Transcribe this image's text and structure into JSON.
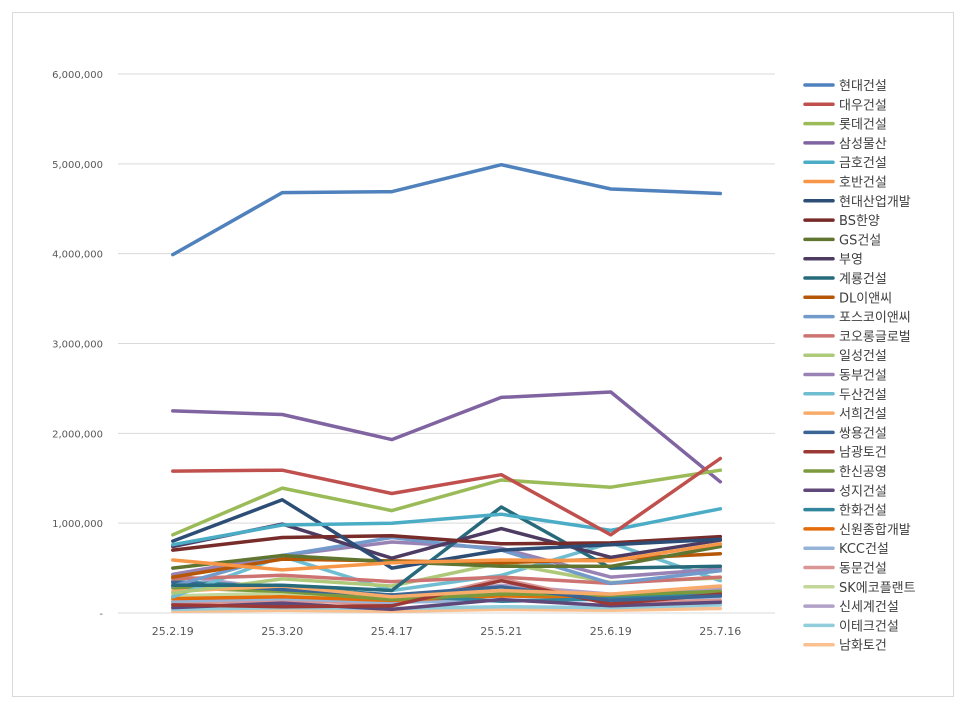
{
  "chart_data": {
    "type": "line",
    "title": "",
    "xlabel": "",
    "ylabel": "",
    "categories": [
      "25.2.19",
      "25.3.20",
      "25.4.17",
      "25.5.21",
      "25.6.19",
      "25.7.16"
    ],
    "ylim": [
      0,
      6000000
    ],
    "yticks": [
      0,
      1000000,
      2000000,
      3000000,
      4000000,
      5000000,
      6000000
    ],
    "ytick_labels": [
      "-",
      "1,000,000",
      "2,000,000",
      "3,000,000",
      "4,000,000",
      "5,000,000",
      "6,000,000"
    ],
    "grid": "horizontal",
    "legend_position": "right",
    "series": [
      {
        "name": "현대건설",
        "color": "#4f81bd",
        "values": [
          3990000,
          4680000,
          4690000,
          4990000,
          4720000,
          4670000
        ]
      },
      {
        "name": "대우건설",
        "color": "#c0504d",
        "values": [
          1580000,
          1590000,
          1330000,
          1540000,
          870000,
          1720000
        ]
      },
      {
        "name": "롯데건설",
        "color": "#9bbb59",
        "values": [
          870000,
          1390000,
          1140000,
          1480000,
          1400000,
          1590000
        ]
      },
      {
        "name": "삼성물산",
        "color": "#8064a2",
        "values": [
          2250000,
          2210000,
          1930000,
          2400000,
          2460000,
          1460000
        ]
      },
      {
        "name": "금호건설",
        "color": "#4bacc6",
        "values": [
          760000,
          980000,
          1000000,
          1100000,
          920000,
          1160000
        ]
      },
      {
        "name": "호반건설",
        "color": "#f79646",
        "values": [
          590000,
          480000,
          560000,
          590000,
          580000,
          770000
        ]
      },
      {
        "name": "현대산업개발",
        "color": "#2c4d75",
        "values": [
          800000,
          1260000,
          500000,
          700000,
          760000,
          820000
        ]
      },
      {
        "name": "BS한양",
        "color": "#772c2a",
        "values": [
          700000,
          840000,
          860000,
          770000,
          780000,
          850000
        ]
      },
      {
        "name": "GS건설",
        "color": "#5f7530",
        "values": [
          500000,
          640000,
          570000,
          520000,
          520000,
          740000
        ]
      },
      {
        "name": "부영",
        "color": "#4d3b62",
        "values": [
          740000,
          990000,
          610000,
          940000,
          620000,
          810000
        ]
      },
      {
        "name": "계룡건설",
        "color": "#276a7c",
        "values": [
          310000,
          310000,
          250000,
          1180000,
          500000,
          520000
        ]
      },
      {
        "name": "DL이앤씨",
        "color": "#b65708",
        "values": [
          400000,
          600000,
          580000,
          560000,
          600000,
          660000
        ]
      },
      {
        "name": "포스코이앤씨",
        "color": "#729aca",
        "values": [
          300000,
          640000,
          840000,
          700000,
          330000,
          470000
        ]
      },
      {
        "name": "코오롱글로벌",
        "color": "#cd7371",
        "values": [
          380000,
          420000,
          350000,
          400000,
          330000,
          400000
        ]
      },
      {
        "name": "일성건설",
        "color": "#afc97a",
        "values": [
          220000,
          380000,
          300000,
          560000,
          340000,
          390000
        ]
      },
      {
        "name": "동부건설",
        "color": "#9983b5",
        "values": [
          430000,
          640000,
          790000,
          720000,
          400000,
          490000
        ]
      },
      {
        "name": "두산건설",
        "color": "#6fbdd1",
        "values": [
          180000,
          630000,
          250000,
          420000,
          780000,
          360000
        ]
      },
      {
        "name": "서희건설",
        "color": "#f9ab6b",
        "values": [
          240000,
          300000,
          180000,
          250000,
          210000,
          300000
        ]
      },
      {
        "name": "쌍용건설",
        "color": "#3a6595",
        "values": [
          340000,
          260000,
          200000,
          290000,
          140000,
          190000
        ]
      },
      {
        "name": "남광토건",
        "color": "#9a3936",
        "values": [
          90000,
          70000,
          80000,
          360000,
          100000,
          210000
        ]
      },
      {
        "name": "한신공영",
        "color": "#7a9a3d",
        "values": [
          280000,
          240000,
          150000,
          210000,
          200000,
          240000
        ]
      },
      {
        "name": "성지건설",
        "color": "#5f497a",
        "values": [
          60000,
          110000,
          40000,
          150000,
          80000,
          120000
        ]
      },
      {
        "name": "한화건설",
        "color": "#31859c",
        "values": [
          350000,
          290000,
          200000,
          130000,
          160000,
          210000
        ]
      },
      {
        "name": "신원종합개발",
        "color": "#e46c0a",
        "values": [
          160000,
          180000,
          140000,
          190000,
          170000,
          220000
        ]
      },
      {
        "name": "KCC건설",
        "color": "#95b3d7",
        "values": [
          130000,
          160000,
          120000,
          140000,
          150000,
          180000
        ]
      },
      {
        "name": "동문건설",
        "color": "#da9694",
        "values": [
          110000,
          140000,
          100000,
          380000,
          120000,
          140000
        ]
      },
      {
        "name": "SK에코플랜트",
        "color": "#c4d79b",
        "values": [
          190000,
          220000,
          160000,
          230000,
          180000,
          210000
        ]
      },
      {
        "name": "신세계건설",
        "color": "#b1a0c7",
        "values": [
          420000,
          260000,
          170000,
          310000,
          210000,
          270000
        ]
      },
      {
        "name": "이테크건설",
        "color": "#92cddc",
        "values": [
          40000,
          60000,
          50000,
          70000,
          60000,
          90000
        ]
      },
      {
        "name": "남화토건",
        "color": "#fac090",
        "values": [
          20000,
          30000,
          20000,
          40000,
          30000,
          50000
        ]
      }
    ]
  }
}
